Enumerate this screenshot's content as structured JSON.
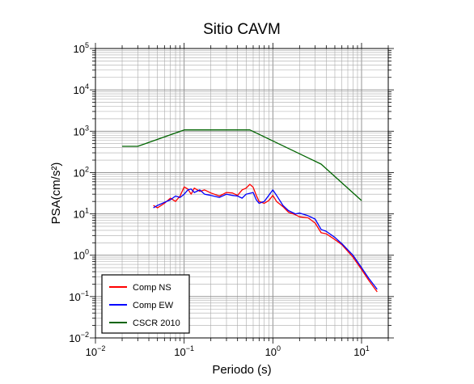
{
  "chart_data": {
    "type": "line",
    "title": "Sitio CAVM",
    "xlabel": "Periodo (s)",
    "ylabel": "PSA(cm/s²)",
    "x_scale": "log",
    "y_scale": "log",
    "xlim": [
      0.01,
      20
    ],
    "ylim": [
      0.01,
      100000
    ],
    "grid": true,
    "legend_position": "bottom-left",
    "x_tick_labels": [
      {
        "base": "10",
        "exp": "−2"
      },
      {
        "base": "10",
        "exp": "−1"
      },
      {
        "base": "10",
        "exp": "0"
      },
      {
        "base": "10",
        "exp": "1"
      }
    ],
    "y_tick_labels": [
      {
        "base": "10",
        "exp": "−2"
      },
      {
        "base": "10",
        "exp": "−1"
      },
      {
        "base": "10",
        "exp": "0"
      },
      {
        "base": "10",
        "exp": "1"
      },
      {
        "base": "10",
        "exp": "2"
      },
      {
        "base": "10",
        "exp": "3"
      },
      {
        "base": "10",
        "exp": "4"
      },
      {
        "base": "10",
        "exp": "5"
      }
    ],
    "series": [
      {
        "name": "Comp NS",
        "color": "#ff0000",
        "points": [
          [
            0.045,
            16
          ],
          [
            0.05,
            14
          ],
          [
            0.06,
            18
          ],
          [
            0.07,
            24
          ],
          [
            0.08,
            20
          ],
          [
            0.09,
            27
          ],
          [
            0.1,
            45
          ],
          [
            0.11,
            40
          ],
          [
            0.12,
            30
          ],
          [
            0.13,
            42
          ],
          [
            0.15,
            35
          ],
          [
            0.17,
            38
          ],
          [
            0.2,
            32
          ],
          [
            0.25,
            27
          ],
          [
            0.3,
            33
          ],
          [
            0.35,
            32
          ],
          [
            0.4,
            28
          ],
          [
            0.45,
            38
          ],
          [
            0.5,
            42
          ],
          [
            0.55,
            52
          ],
          [
            0.6,
            44
          ],
          [
            0.65,
            28
          ],
          [
            0.7,
            20
          ],
          [
            0.8,
            18
          ],
          [
            0.9,
            21
          ],
          [
            1.0,
            28
          ],
          [
            1.1,
            20
          ],
          [
            1.3,
            15
          ],
          [
            1.5,
            11
          ],
          [
            1.8,
            9.5
          ],
          [
            2.0,
            8.5
          ],
          [
            2.5,
            8
          ],
          [
            3.0,
            6
          ],
          [
            3.5,
            3.5
          ],
          [
            4.0,
            3.3
          ],
          [
            5.0,
            2.4
          ],
          [
            6.0,
            1.8
          ],
          [
            8.0,
            0.9
          ],
          [
            10.0,
            0.45
          ],
          [
            12.0,
            0.25
          ],
          [
            15.0,
            0.13
          ]
        ]
      },
      {
        "name": "Comp EW",
        "color": "#0000ff",
        "points": [
          [
            0.045,
            14
          ],
          [
            0.05,
            16
          ],
          [
            0.06,
            19
          ],
          [
            0.07,
            22
          ],
          [
            0.08,
            27
          ],
          [
            0.09,
            25
          ],
          [
            0.1,
            30
          ],
          [
            0.11,
            38
          ],
          [
            0.12,
            40
          ],
          [
            0.13,
            33
          ],
          [
            0.15,
            38
          ],
          [
            0.17,
            30
          ],
          [
            0.2,
            28
          ],
          [
            0.25,
            25
          ],
          [
            0.3,
            30
          ],
          [
            0.35,
            28
          ],
          [
            0.4,
            27
          ],
          [
            0.45,
            24
          ],
          [
            0.5,
            30
          ],
          [
            0.6,
            33
          ],
          [
            0.65,
            22
          ],
          [
            0.7,
            18
          ],
          [
            0.8,
            20
          ],
          [
            0.9,
            28
          ],
          [
            1.0,
            38
          ],
          [
            1.1,
            28
          ],
          [
            1.3,
            16
          ],
          [
            1.5,
            12
          ],
          [
            1.8,
            10
          ],
          [
            2.0,
            10.5
          ],
          [
            2.5,
            9
          ],
          [
            3.0,
            7.5
          ],
          [
            3.5,
            4.2
          ],
          [
            4.0,
            3.8
          ],
          [
            5.0,
            2.7
          ],
          [
            6.0,
            1.9
          ],
          [
            8.0,
            1.0
          ],
          [
            10.0,
            0.5
          ],
          [
            12.0,
            0.28
          ],
          [
            15.0,
            0.15
          ]
        ]
      },
      {
        "name": "CSCR 2010",
        "color": "#006400",
        "points": [
          [
            0.02,
            430
          ],
          [
            0.03,
            430
          ],
          [
            0.1,
            1075
          ],
          [
            0.55,
            1075
          ],
          [
            3.5,
            160
          ],
          [
            10.0,
            21
          ]
        ]
      }
    ]
  }
}
